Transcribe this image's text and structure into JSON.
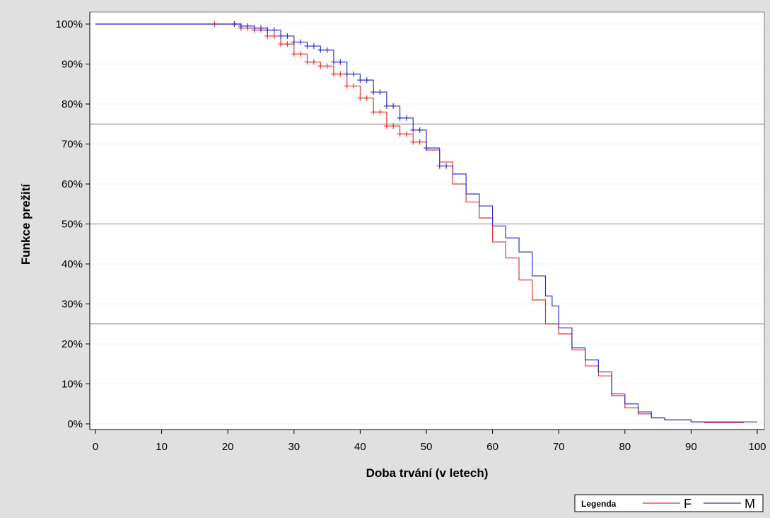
{
  "chart_data": {
    "type": "line",
    "step": true,
    "xlabel": "Doba trvání (v letech)",
    "ylabel": "Funkce prežití",
    "xlim": [
      0,
      100
    ],
    "ylim": [
      0,
      1
    ],
    "x_ticks": [
      "0",
      "10",
      "20",
      "30",
      "40",
      "50",
      "60",
      "70",
      "80",
      "90",
      "100"
    ],
    "y_ticks": [
      "0%",
      "10%",
      "20%",
      "30%",
      "40%",
      "50%",
      "60%",
      "70%",
      "80%",
      "90%",
      "100%"
    ],
    "reference_lines": [
      0.25,
      0.5,
      0.75
    ],
    "legend": {
      "title": "Legenda",
      "position": "bottom-right"
    },
    "series": [
      {
        "name": "F",
        "color": "#e8342a",
        "points": [
          [
            0,
            1.0
          ],
          [
            18,
            1.0
          ],
          [
            22,
            0.99
          ],
          [
            24,
            0.985
          ],
          [
            26,
            0.97
          ],
          [
            28,
            0.95
          ],
          [
            30,
            0.925
          ],
          [
            32,
            0.905
          ],
          [
            34,
            0.895
          ],
          [
            36,
            0.875
          ],
          [
            38,
            0.845
          ],
          [
            40,
            0.815
          ],
          [
            42,
            0.78
          ],
          [
            44,
            0.745
          ],
          [
            46,
            0.725
          ],
          [
            48,
            0.705
          ],
          [
            50,
            0.685
          ],
          [
            52,
            0.655
          ],
          [
            54,
            0.6
          ],
          [
            56,
            0.555
          ],
          [
            58,
            0.515
          ],
          [
            60,
            0.455
          ],
          [
            62,
            0.415
          ],
          [
            64,
            0.36
          ],
          [
            66,
            0.31
          ],
          [
            68,
            0.25
          ],
          [
            70,
            0.225
          ],
          [
            72,
            0.185
          ],
          [
            74,
            0.145
          ],
          [
            76,
            0.12
          ],
          [
            78,
            0.075
          ],
          [
            80,
            0.04
          ],
          [
            82,
            0.025
          ],
          [
            84,
            0.015
          ],
          [
            86,
            0.01
          ],
          [
            90,
            0.005
          ],
          [
            92,
            0.003
          ],
          [
            98,
            0.003
          ]
        ],
        "censored_x": [
          18,
          21,
          22,
          23,
          24,
          25,
          26,
          27,
          28,
          29,
          30,
          31,
          32,
          33,
          34,
          35,
          36,
          37,
          38,
          39,
          40,
          41,
          42,
          43,
          44,
          45,
          46,
          47,
          48,
          49
        ]
      },
      {
        "name": "M",
        "color": "#2f2fd0",
        "points": [
          [
            0,
            1.0
          ],
          [
            20,
            1.0
          ],
          [
            22,
            0.995
          ],
          [
            24,
            0.99
          ],
          [
            26,
            0.985
          ],
          [
            28,
            0.97
          ],
          [
            30,
            0.955
          ],
          [
            32,
            0.945
          ],
          [
            34,
            0.935
          ],
          [
            36,
            0.905
          ],
          [
            38,
            0.875
          ],
          [
            40,
            0.86
          ],
          [
            42,
            0.83
          ],
          [
            44,
            0.795
          ],
          [
            46,
            0.765
          ],
          [
            48,
            0.735
          ],
          [
            50,
            0.69
          ],
          [
            52,
            0.645
          ],
          [
            54,
            0.625
          ],
          [
            56,
            0.575
          ],
          [
            58,
            0.545
          ],
          [
            60,
            0.495
          ],
          [
            62,
            0.465
          ],
          [
            64,
            0.43
          ],
          [
            66,
            0.37
          ],
          [
            68,
            0.32
          ],
          [
            69,
            0.295
          ],
          [
            70,
            0.24
          ],
          [
            72,
            0.19
          ],
          [
            74,
            0.16
          ],
          [
            76,
            0.13
          ],
          [
            78,
            0.07
          ],
          [
            80,
            0.05
          ],
          [
            82,
            0.03
          ],
          [
            84,
            0.015
          ],
          [
            86,
            0.01
          ],
          [
            90,
            0.005
          ],
          [
            92,
            0.005
          ],
          [
            100,
            0.005
          ]
        ],
        "censored_x": [
          21,
          22,
          23,
          24,
          25,
          26,
          27,
          28,
          29,
          30,
          31,
          32,
          33,
          34,
          35,
          36,
          37,
          38,
          39,
          40,
          41,
          42,
          43,
          44,
          45,
          46,
          47,
          48,
          49,
          50,
          52,
          53
        ]
      }
    ]
  }
}
